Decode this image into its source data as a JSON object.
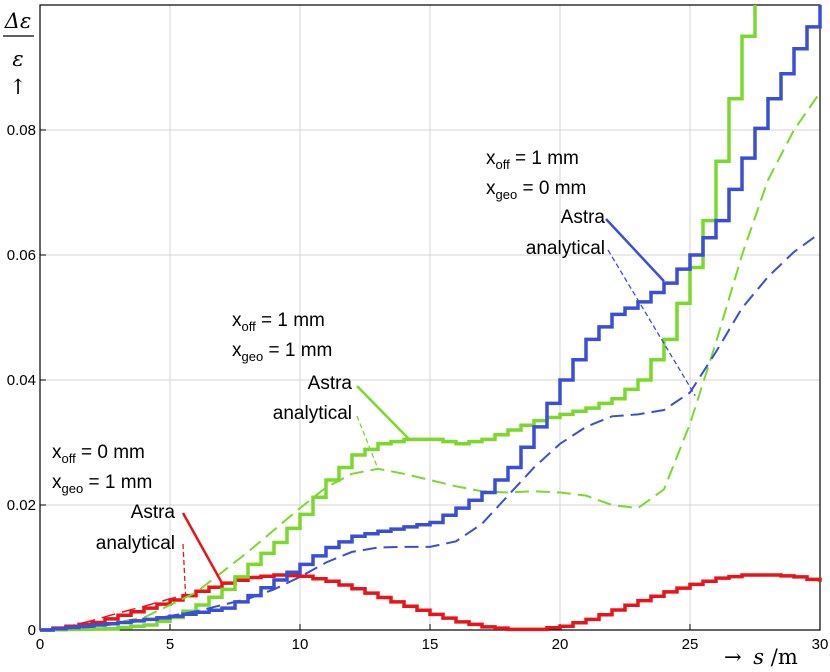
{
  "chart_data": {
    "type": "line",
    "xlabel": {
      "arrow": "→",
      "var": "s",
      "unit": "/m"
    },
    "ylabel": {
      "numerator": "Δε",
      "denominator": "ε",
      "arrow": "↑"
    },
    "xlim": [
      0,
      30
    ],
    "ylim": [
      0,
      0.1
    ],
    "xticks": [
      0,
      5,
      10,
      15,
      20,
      25,
      30
    ],
    "yticks": [
      {
        "value": 0,
        "label": "0"
      },
      {
        "value": 0.02,
        "label": "0.02"
      },
      {
        "value": 0.04,
        "label": "0.04"
      },
      {
        "value": 0.06,
        "label": "0.06"
      },
      {
        "value": 0.08,
        "label": "0.08"
      }
    ],
    "series": [
      {
        "name": "Astra (xoff=0 mm, xgeo=1 mm)",
        "color": "#e8141a",
        "style": "step",
        "width": 3.5,
        "x": [
          0,
          2,
          4,
          5,
          6,
          7,
          8,
          9,
          10,
          11,
          12,
          13,
          14,
          15,
          16,
          17,
          18,
          19,
          20,
          21,
          22,
          23,
          24,
          25,
          26,
          27,
          28,
          29,
          30
        ],
        "y": [
          0,
          0.0012,
          0.0035,
          0.0048,
          0.0062,
          0.0075,
          0.0084,
          0.0088,
          0.0086,
          0.0078,
          0.0066,
          0.0052,
          0.0038,
          0.0025,
          0.0013,
          0.0005,
          0.0001,
          0.0001,
          0.0006,
          0.0017,
          0.0032,
          0.0047,
          0.0061,
          0.0073,
          0.0083,
          0.0088,
          0.0088,
          0.0085,
          0.0077
        ]
      },
      {
        "name": "analytical (xoff=0 mm, xgeo=1 mm)",
        "color": "#e8141a",
        "style": "dash",
        "width": 1.5,
        "x": [
          0,
          1,
          2,
          3,
          4,
          5,
          5.5
        ],
        "y": [
          0,
          0.0005,
          0.0015,
          0.0027,
          0.0038,
          0.005,
          0.0055
        ]
      },
      {
        "name": "Astra (xoff=1 mm, xgeo=1 mm)",
        "color": "#7ad92c",
        "style": "step",
        "width": 3.5,
        "x": [
          0,
          2.5,
          4,
          5,
          6,
          7,
          8,
          9,
          10,
          11,
          12,
          13,
          14,
          15,
          16,
          17,
          18,
          19,
          20,
          21,
          22,
          23,
          24,
          25,
          25.5,
          26,
          26.5,
          27,
          27.5
        ],
        "y": [
          0,
          0.0002,
          0.0008,
          0.002,
          0.004,
          0.0065,
          0.0105,
          0.014,
          0.0185,
          0.024,
          0.028,
          0.0298,
          0.0305,
          0.0305,
          0.0298,
          0.0305,
          0.032,
          0.0335,
          0.0345,
          0.0355,
          0.037,
          0.04,
          0.0465,
          0.058,
          0.0655,
          0.075,
          0.085,
          0.095,
          0.1
        ]
      },
      {
        "name": "analytical (xoff=1 mm, xgeo=1 mm)",
        "color": "#7ad92c",
        "style": "dash",
        "width": 2,
        "x": [
          0,
          2,
          4,
          6,
          8,
          9,
          10,
          11,
          12,
          13,
          14,
          15,
          16,
          17,
          18,
          19,
          20,
          21,
          22,
          23,
          24,
          25,
          26,
          27,
          28,
          29,
          30
        ],
        "y": [
          0,
          0.0005,
          0.002,
          0.006,
          0.0125,
          0.016,
          0.0195,
          0.0228,
          0.025,
          0.0258,
          0.025,
          0.024,
          0.023,
          0.0222,
          0.022,
          0.0222,
          0.022,
          0.0215,
          0.02,
          0.0195,
          0.0225,
          0.033,
          0.046,
          0.06,
          0.072,
          0.08,
          0.086
        ]
      },
      {
        "name": "Astra (xoff=1 mm, xgeo=0 mm)",
        "color": "#3b4fd6",
        "style": "step",
        "width": 3.5,
        "x": [
          0,
          3,
          5,
          7,
          8,
          9,
          10,
          11,
          12,
          13,
          14,
          15,
          16,
          17,
          18,
          19,
          20,
          21,
          22,
          23,
          24,
          25,
          26,
          27,
          28,
          29,
          30
        ],
        "y": [
          0,
          0.0012,
          0.0022,
          0.0035,
          0.0055,
          0.008,
          0.0105,
          0.0132,
          0.015,
          0.0158,
          0.0165,
          0.0172,
          0.0195,
          0.022,
          0.026,
          0.0325,
          0.04,
          0.0465,
          0.0505,
          0.0525,
          0.0555,
          0.06,
          0.0655,
          0.0755,
          0.085,
          0.093,
          0.1
        ]
      },
      {
        "name": "analytical (xoff=1 mm, xgeo=0 mm)",
        "color": "#3b4fd6",
        "style": "dash",
        "width": 2,
        "x": [
          0,
          2,
          4,
          6,
          8,
          9,
          10,
          11,
          12,
          13,
          14,
          15,
          16,
          17,
          18,
          19,
          20,
          21,
          22,
          23,
          24,
          25,
          26,
          27,
          28,
          29,
          30
        ],
        "y": [
          0,
          0.0005,
          0.0015,
          0.003,
          0.005,
          0.0065,
          0.0085,
          0.0108,
          0.0125,
          0.0132,
          0.0133,
          0.0133,
          0.0142,
          0.017,
          0.0215,
          0.026,
          0.0298,
          0.0325,
          0.0342,
          0.0345,
          0.0352,
          0.038,
          0.0445,
          0.0515,
          0.0565,
          0.0605,
          0.0635
        ]
      }
    ],
    "annotations": [
      {
        "id": "red",
        "color": "#e8141a",
        "x_off": {
          "base": "x",
          "sub": "off",
          "rest": " = 0 mm"
        },
        "x_geo": {
          "base": "x",
          "sub": "geo",
          "rest": " = 1 mm"
        },
        "astra": "Astra",
        "analytical": "analytical",
        "astra_point": [
          7.0,
          0.0075
        ],
        "analytical_point": [
          5.6,
          0.0055
        ]
      },
      {
        "id": "green",
        "color": "#7ad92c",
        "x_off": {
          "base": "x",
          "sub": "off",
          "rest": " = 1 mm"
        },
        "x_geo": {
          "base": "x",
          "sub": "geo",
          "rest": " = 1 mm"
        },
        "astra": "Astra",
        "analytical": "analytical",
        "astra_point": [
          14.2,
          0.0305
        ],
        "analytical_point": [
          13.0,
          0.0258
        ]
      },
      {
        "id": "blue",
        "color": "#3b4fd6",
        "x_off": {
          "base": "x",
          "sub": "off",
          "rest": " = 1 mm"
        },
        "x_geo": {
          "base": "x",
          "sub": "geo",
          "rest": " = 0 mm"
        },
        "astra": "Astra",
        "analytical": "analytical",
        "astra_point": [
          24.0,
          0.0558
        ],
        "analytical_point": [
          25.2,
          0.0375
        ]
      }
    ]
  }
}
